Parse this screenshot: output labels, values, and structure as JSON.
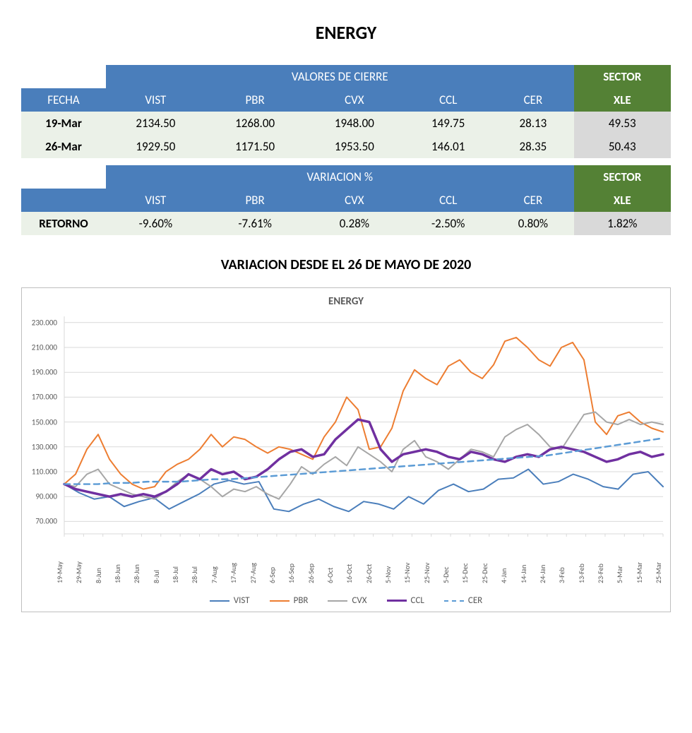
{
  "title": "ENERGY",
  "table1": {
    "header_main": "VALORES DE CIERRE",
    "header_sector": "SECTOR",
    "col_fecha": "FECHA",
    "cols": [
      "VIST",
      "PBR",
      "CVX",
      "CCL",
      "CER"
    ],
    "col_xle": "XLE",
    "rows": [
      {
        "fecha": "19-Mar",
        "vals": [
          "2134.50",
          "1268.00",
          "1948.00",
          "149.75",
          "28.13"
        ],
        "xle": "49.53"
      },
      {
        "fecha": "26-Mar",
        "vals": [
          "1929.50",
          "1171.50",
          "1953.50",
          "146.01",
          "28.35"
        ],
        "xle": "50.43"
      }
    ]
  },
  "table2": {
    "header_main": "VARIACION %",
    "header_sector": "SECTOR",
    "cols": [
      "VIST",
      "PBR",
      "CVX",
      "CCL",
      "CER"
    ],
    "col_xle": "XLE",
    "row": {
      "label": "RETORNO",
      "vals": [
        "-9.60%",
        "-7.61%",
        "0.28%",
        "-2.50%",
        "0.80%"
      ],
      "xle": "1.82%"
    }
  },
  "chart_title": "VARIACION DESDE EL 26 DE MAYO DE 2020",
  "chart": {
    "type": "line",
    "inner_title": "ENERGY",
    "background_color": "#ffffff",
    "border_color": "#bfbfbf",
    "grid_color": "#d9d9d9",
    "label_color": "#595959",
    "title_fontsize": 15,
    "label_fontsize": 11,
    "ylim": [
      60,
      235
    ],
    "yticks": [
      70,
      90,
      110,
      130,
      150,
      170,
      190,
      210,
      230
    ],
    "ytick_labels": [
      "70.000",
      "90.000",
      "110.000",
      "130.000",
      "150.000",
      "170.000",
      "190.000",
      "210.000",
      "230.000"
    ],
    "x_categories": [
      "19-May",
      "29-May",
      "8-Jun",
      "18-Jun",
      "28-Jun",
      "8-Jul",
      "18-Jul",
      "28-Jul",
      "7-Aug",
      "17-Aug",
      "27-Aug",
      "6-Sep",
      "16-Sep",
      "26-Sep",
      "6-Oct",
      "16-Oct",
      "26-Oct",
      "5-Nov",
      "15-Nov",
      "25-Nov",
      "5-Dec",
      "15-Dec",
      "25-Dec",
      "4-Jan",
      "14-Jan",
      "24-Jan",
      "3-Feb",
      "13-Feb",
      "23-Feb",
      "5-Mar",
      "15-Mar",
      "25-Mar"
    ],
    "series": [
      {
        "name": "VIST",
        "color": "#4a7ebb",
        "width": 2,
        "dash": "none",
        "data": [
          100,
          93,
          88,
          90,
          82,
          86,
          89,
          80,
          86,
          92,
          100,
          103,
          100,
          102,
          80,
          78,
          84,
          88,
          82,
          78,
          86,
          84,
          80,
          90,
          84,
          95,
          100,
          94,
          96,
          104,
          105,
          112,
          100,
          102,
          108,
          104,
          98,
          96,
          108,
          110,
          98
        ]
      },
      {
        "name": "PBR",
        "color": "#ed7d31",
        "width": 2,
        "dash": "none",
        "data": [
          100,
          108,
          128,
          140,
          120,
          108,
          100,
          96,
          98,
          110,
          116,
          120,
          128,
          140,
          130,
          138,
          136,
          130,
          125,
          130,
          128,
          124,
          120,
          138,
          150,
          170,
          160,
          128,
          130,
          145,
          175,
          192,
          185,
          180,
          195,
          200,
          190,
          185,
          196,
          215,
          218,
          210,
          200,
          195,
          210,
          214,
          200,
          150,
          140,
          155,
          158,
          150,
          145,
          142
        ]
      },
      {
        "name": "CVX",
        "color": "#a6a6a6",
        "width": 2,
        "dash": "none",
        "data": [
          100,
          98,
          108,
          112,
          100,
          96,
          92,
          90,
          88,
          94,
          102,
          108,
          104,
          98,
          90,
          96,
          94,
          98,
          92,
          88,
          100,
          114,
          108,
          116,
          122,
          115,
          130,
          124,
          118,
          110,
          128,
          135,
          122,
          118,
          112,
          120,
          128,
          126,
          122,
          138,
          144,
          148,
          140,
          130,
          128,
          142,
          156,
          158,
          150,
          148,
          152,
          148,
          150,
          148
        ]
      },
      {
        "name": "CCL",
        "color": "#7030a0",
        "width": 3.5,
        "dash": "none",
        "data": [
          100,
          96,
          94,
          92,
          90,
          92,
          90,
          92,
          90,
          94,
          100,
          108,
          104,
          112,
          108,
          110,
          104,
          106,
          112,
          120,
          126,
          128,
          122,
          124,
          136,
          144,
          152,
          150,
          128,
          118,
          124,
          126,
          128,
          126,
          122,
          120,
          126,
          124,
          120,
          118,
          122,
          124,
          122,
          128,
          130,
          128,
          126,
          122,
          118,
          120,
          124,
          126,
          122,
          124
        ]
      },
      {
        "name": "CER",
        "color": "#5b9bd5",
        "width": 2.5,
        "dash": "8,6",
        "data": [
          100,
          100,
          100,
          101,
          101,
          102,
          102,
          102,
          103,
          104,
          104,
          105,
          106,
          107,
          108,
          109,
          110,
          111,
          112,
          113,
          114,
          115,
          116,
          117,
          118,
          119,
          120,
          121,
          122,
          123,
          125,
          127,
          129,
          131,
          133,
          135,
          137
        ]
      }
    ],
    "legend": [
      "VIST",
      "PBR",
      "CVX",
      "CCL",
      "CER"
    ]
  }
}
